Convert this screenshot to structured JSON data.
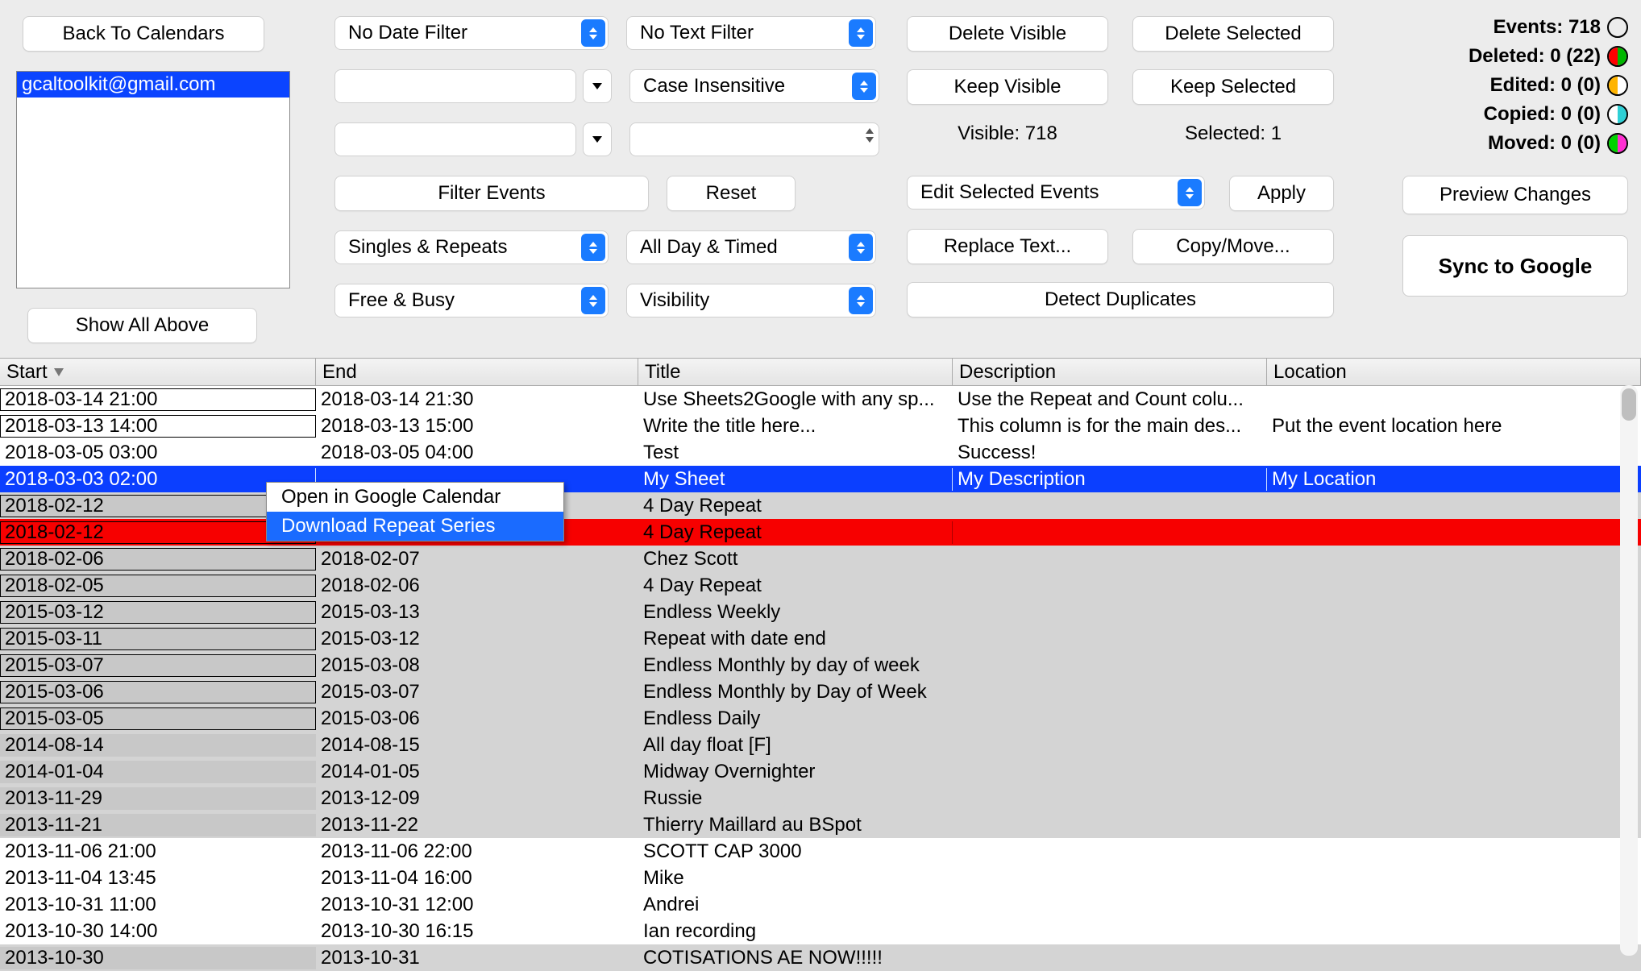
{
  "left": {
    "back_btn": "Back To Calendars",
    "email": "gcaltoolkit@gmail.com",
    "show_all": "Show All Above"
  },
  "filters": {
    "date_filter": "No Date Filter",
    "text_filter": "No Text Filter",
    "case": "Case Insensitive",
    "filter_btn": "Filter Events",
    "reset_btn": "Reset",
    "singles_repeats": "Singles & Repeats",
    "allday_timed": "All Day & Timed",
    "free_busy": "Free & Busy",
    "visibility": "Visibility"
  },
  "actions": {
    "delete_visible": "Delete Visible",
    "delete_selected": "Delete Selected",
    "keep_visible": "Keep Visible",
    "keep_selected": "Keep Selected",
    "visible_label": "Visible: 718",
    "selected_label": "Selected: 1",
    "edit_selected": "Edit Selected Events",
    "apply": "Apply",
    "replace_text": "Replace Text...",
    "copy_move": "Copy/Move...",
    "detect_dup": "Detect Duplicates"
  },
  "stats": {
    "events": "Events: 718",
    "deleted": "Deleted: 0 (22)",
    "edited": "Edited: 0 (0)",
    "copied": "Copied: 0 (0)",
    "moved": "Moved: 0 (0)"
  },
  "preview": "Preview Changes",
  "sync": "Sync to Google",
  "table": {
    "headers": {
      "start": "Start",
      "end": "End",
      "title": "Title",
      "description": "Description",
      "location": "Location"
    },
    "rows": [
      {
        "style": "boxed",
        "start": "2018-03-14 21:00",
        "end": "2018-03-14 21:30",
        "title": "Use Sheets2Google with any sp...",
        "desc": "Use the Repeat and Count colu...",
        "loc": ""
      },
      {
        "style": "boxed",
        "start": "2018-03-13 14:00",
        "end": "2018-03-13 15:00",
        "title": "Write the title here...",
        "desc": "This column is for the main des...",
        "loc": "Put the event location here"
      },
      {
        "style": "plain",
        "start": "2018-03-05 03:00",
        "end": "2018-03-05 04:00",
        "title": "Test",
        "desc": "Success!",
        "loc": ""
      },
      {
        "style": "blue",
        "start": "2018-03-03 02:00",
        "end": "",
        "title": "My Sheet",
        "desc": "My Description",
        "loc": "My Location"
      },
      {
        "style": "grey-boxed",
        "start": "2018-02-12",
        "end": "",
        "title": "4 Day Repeat",
        "desc": "",
        "loc": ""
      },
      {
        "style": "red-boxed",
        "start": "2018-02-12",
        "end": "",
        "title": "4 Day Repeat",
        "desc": "",
        "loc": ""
      },
      {
        "style": "grey-boxed",
        "start": "2018-02-06",
        "end": "2018-02-07",
        "title": "Chez Scott",
        "desc": "",
        "loc": ""
      },
      {
        "style": "grey-boxed",
        "start": "2018-02-05",
        "end": "2018-02-06",
        "title": "4 Day Repeat",
        "desc": "",
        "loc": ""
      },
      {
        "style": "grey-boxed",
        "start": "2015-03-12",
        "end": "2015-03-13",
        "title": "Endless Weekly",
        "desc": "",
        "loc": ""
      },
      {
        "style": "grey-boxed",
        "start": "2015-03-11",
        "end": "2015-03-12",
        "title": "Repeat with date end",
        "desc": "",
        "loc": ""
      },
      {
        "style": "grey-boxed",
        "start": "2015-03-07",
        "end": "2015-03-08",
        "title": "Endless Monthly by day of week",
        "desc": "",
        "loc": ""
      },
      {
        "style": "grey-boxed",
        "start": "2015-03-06",
        "end": "2015-03-07",
        "title": "Endless Monthly by Day of Week",
        "desc": "",
        "loc": ""
      },
      {
        "style": "grey-boxed",
        "start": "2015-03-05",
        "end": "2015-03-06",
        "title": "Endless Daily",
        "desc": "",
        "loc": ""
      },
      {
        "style": "grey",
        "start": "2014-08-14",
        "end": "2014-08-15",
        "title": "All day float [F]",
        "desc": "",
        "loc": ""
      },
      {
        "style": "grey",
        "start": "2014-01-04",
        "end": "2014-01-05",
        "title": "Midway Overnighter",
        "desc": "",
        "loc": ""
      },
      {
        "style": "grey",
        "start": "2013-11-29",
        "end": "2013-12-09",
        "title": "Russie",
        "desc": "",
        "loc": ""
      },
      {
        "style": "grey",
        "start": "2013-11-21",
        "end": "2013-11-22",
        "title": "Thierry Maillard au BSpot",
        "desc": "",
        "loc": ""
      },
      {
        "style": "plain",
        "start": "2013-11-06 21:00",
        "end": "2013-11-06 22:00",
        "title": "SCOTT CAP 3000",
        "desc": "",
        "loc": ""
      },
      {
        "style": "plain",
        "start": "2013-11-04 13:45",
        "end": "2013-11-04 16:00",
        "title": "Mike",
        "desc": "",
        "loc": ""
      },
      {
        "style": "plain",
        "start": "2013-10-31 11:00",
        "end": "2013-10-31 12:00",
        "title": "Andrei",
        "desc": "",
        "loc": ""
      },
      {
        "style": "plain",
        "start": "2013-10-30 14:00",
        "end": "2013-10-30 16:15",
        "title": "Ian recording",
        "desc": "",
        "loc": ""
      },
      {
        "style": "grey",
        "start": "2013-10-30",
        "end": "2013-10-31",
        "title": "COTISATIONS AE NOW!!!!!",
        "desc": "",
        "loc": ""
      }
    ]
  },
  "context_menu": {
    "open": "Open in Google Calendar",
    "download": "Download Repeat Series"
  },
  "colors": {
    "deleted_l": "#ff0000",
    "deleted_r": "#00b700",
    "edited_l": "#ffb400",
    "edited_r": "#ffb400",
    "copied_l": "#ffffff",
    "copied_r": "#2fd0d6",
    "moved_l": "#00d200",
    "moved_r": "#ff2fd2"
  }
}
